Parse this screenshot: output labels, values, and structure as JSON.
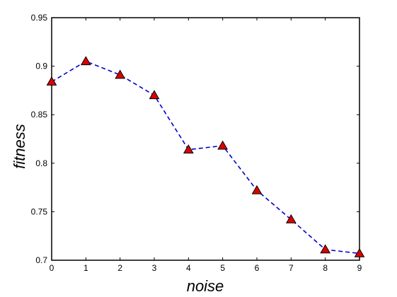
{
  "chart_data": {
    "type": "line",
    "title": "",
    "xlabel": "noise",
    "ylabel": "fitness",
    "xlim": [
      0,
      9
    ],
    "ylim": [
      0.7,
      0.95
    ],
    "xticks": [
      0,
      1,
      2,
      3,
      4,
      5,
      6,
      7,
      8,
      9
    ],
    "xtick_labels": [
      "0",
      "1",
      "2",
      "3",
      "4",
      "5",
      "6",
      "7",
      "8",
      "9"
    ],
    "yticks": [
      0.7,
      0.75,
      0.8,
      0.85,
      0.9,
      0.95
    ],
    "ytick_labels": [
      "0.7",
      "0.75",
      "0.8",
      "0.85",
      "0.9",
      "0.95"
    ],
    "grid": false,
    "series": [
      {
        "x": [
          0,
          1,
          2,
          3,
          4,
          5,
          6,
          7,
          8,
          9
        ],
        "y": [
          0.884,
          0.905,
          0.891,
          0.87,
          0.814,
          0.818,
          0.772,
          0.742,
          0.711,
          0.707
        ],
        "line_color": "#0000cc",
        "line_style": "dashed",
        "marker": "triangle",
        "marker_color": "#dd0000"
      }
    ]
  }
}
